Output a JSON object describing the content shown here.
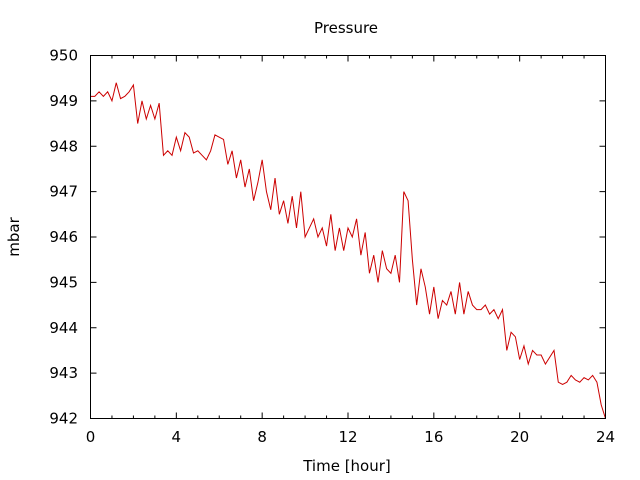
{
  "chart_data": {
    "type": "line",
    "title": "Pressure",
    "xlabel": "Time [hour]",
    "ylabel": "mbar",
    "xlim": [
      0,
      24
    ],
    "ylim": [
      942,
      950
    ],
    "x_ticks": [
      "0",
      "4",
      "8",
      "12",
      "16",
      "20",
      "24"
    ],
    "y_ticks": [
      "942",
      "943",
      "944",
      "945",
      "946",
      "947",
      "948",
      "949",
      "950"
    ],
    "grid": false,
    "line_color": "#cc0000",
    "series": [
      {
        "x": [
          0,
          0.2,
          0.4,
          0.6,
          0.8,
          1.0,
          1.2,
          1.4,
          1.6,
          1.8,
          2.0,
          2.2,
          2.4,
          2.6,
          2.8,
          3.0,
          3.2,
          3.4,
          3.6,
          3.8,
          4.0,
          4.2,
          4.4,
          4.6,
          4.8,
          5.0,
          5.2,
          5.4,
          5.6,
          5.8,
          6.0,
          6.2,
          6.4,
          6.6,
          6.8,
          7.0,
          7.2,
          7.4,
          7.6,
          7.8,
          8.0,
          8.2,
          8.4,
          8.6,
          8.8,
          9.0,
          9.2,
          9.4,
          9.6,
          9.8,
          10.0,
          10.2,
          10.4,
          10.6,
          10.8,
          11.0,
          11.2,
          11.4,
          11.6,
          11.8,
          12.0,
          12.2,
          12.4,
          12.6,
          12.8,
          13.0,
          13.2,
          13.4,
          13.6,
          13.8,
          14.0,
          14.2,
          14.4,
          14.6,
          14.8,
          15.0,
          15.2,
          15.4,
          15.6,
          15.8,
          16.0,
          16.2,
          16.4,
          16.6,
          16.8,
          17.0,
          17.2,
          17.4,
          17.6,
          17.8,
          18.0,
          18.2,
          18.4,
          18.6,
          18.8,
          19.0,
          19.2,
          19.4,
          19.6,
          19.8,
          20.0,
          20.2,
          20.4,
          20.6,
          20.8,
          21.0,
          21.2,
          21.4,
          21.6,
          21.8,
          22.0,
          22.2,
          22.4,
          22.6,
          22.8,
          23.0,
          23.2,
          23.4,
          23.6,
          23.8,
          24.0
        ],
        "y": [
          949.1,
          949.1,
          949.2,
          949.1,
          949.2,
          949.0,
          949.4,
          949.05,
          949.1,
          949.2,
          949.35,
          948.5,
          949.0,
          948.6,
          948.9,
          948.6,
          948.95,
          947.8,
          947.9,
          947.8,
          948.2,
          947.9,
          948.3,
          948.2,
          947.85,
          947.9,
          947.8,
          947.7,
          947.9,
          948.25,
          948.2,
          948.15,
          947.6,
          947.9,
          947.3,
          947.7,
          947.1,
          947.5,
          946.8,
          947.2,
          947.7,
          947.0,
          946.6,
          947.3,
          946.5,
          946.8,
          946.3,
          946.9,
          946.2,
          947.0,
          946.0,
          946.2,
          946.4,
          946.0,
          946.2,
          945.8,
          946.5,
          945.7,
          946.2,
          945.7,
          946.2,
          946.0,
          946.4,
          945.6,
          946.1,
          945.2,
          945.6,
          945.0,
          945.7,
          945.3,
          945.2,
          945.6,
          945.0,
          947.0,
          946.8,
          945.5,
          944.5,
          945.3,
          944.9,
          944.3,
          944.9,
          944.2,
          944.6,
          944.5,
          944.8,
          944.3,
          945.0,
          944.3,
          944.8,
          944.5,
          944.4,
          944.4,
          944.5,
          944.3,
          944.4,
          944.2,
          944.4,
          943.5,
          943.9,
          943.8,
          943.3,
          943.6,
          943.2,
          943.5,
          943.4,
          943.4,
          943.2,
          943.35,
          943.5,
          942.8,
          942.75,
          942.8,
          942.95,
          942.85,
          942.8,
          942.9,
          942.85,
          942.95,
          942.8,
          942.3,
          942.0
        ]
      }
    ]
  }
}
